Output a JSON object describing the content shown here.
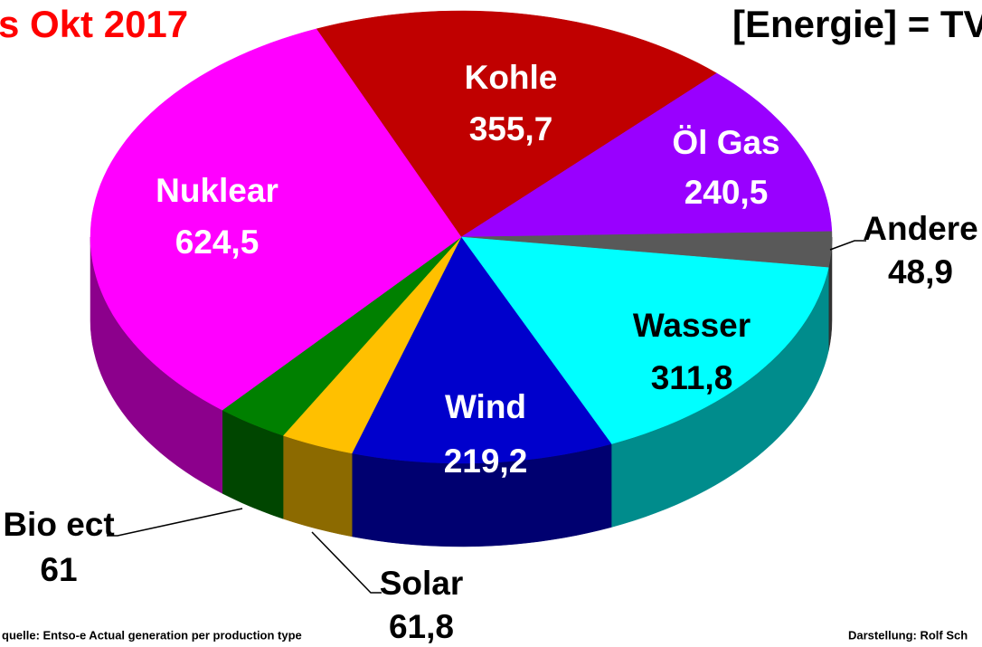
{
  "chart_data": {
    "type": "pie",
    "title": "s Okt 2017",
    "subtitle": "[Energie] = TV",
    "source": "quelle: Entso-e  Actual generation per production type",
    "credit": "Darstellung: Rolf Sch",
    "categories": [
      "Kohle",
      "Öl Gas",
      "Andere",
      "Wasser",
      "Wind",
      "Solar",
      "Bio ect",
      "Nuklear"
    ],
    "values": [
      355.7,
      240.5,
      48.9,
      311.8,
      219.2,
      61.8,
      61,
      624.5
    ],
    "value_labels": [
      "355,7",
      "240,5",
      "48,9",
      "311,8",
      "219,2",
      "61,8",
      "61",
      "624,5"
    ],
    "colors": [
      "#c00000",
      "#9900ff",
      "#595959",
      "#00ffff",
      "#0000cc",
      "#ffc000",
      "#008000",
      "#ff00ff"
    ]
  }
}
